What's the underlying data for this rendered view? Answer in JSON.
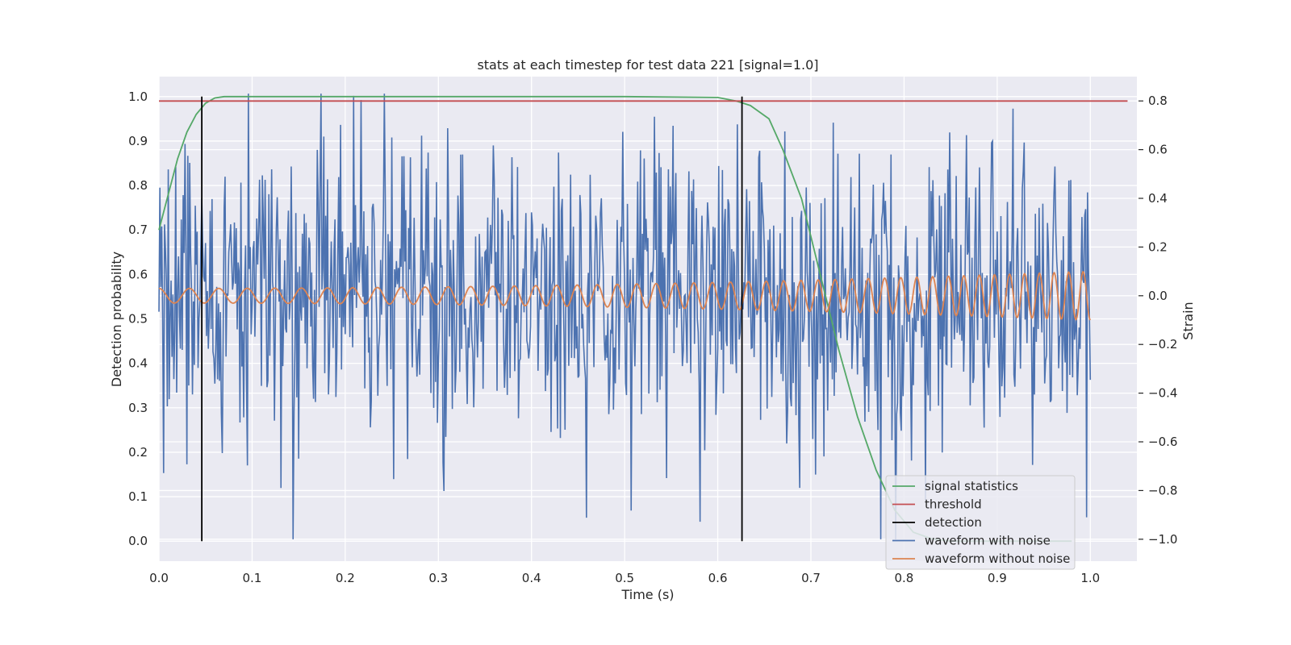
{
  "chart_data": {
    "type": "line",
    "title": "stats at each timestep for test data 221 [signal=1.0]",
    "xlabel": "Time (s)",
    "ylabel": "Detection probability",
    "y2label": "Strain",
    "xlim": [
      0.0,
      1.05
    ],
    "ylim": [
      -0.045,
      1.045
    ],
    "y2lim": [
      -1.09,
      0.9
    ],
    "xticks": [
      "0.0",
      "0.1",
      "0.2",
      "0.3",
      "0.4",
      "0.5",
      "0.6",
      "0.7",
      "0.8",
      "0.9",
      "1.0"
    ],
    "yticks": [
      "0.0",
      "0.1",
      "0.2",
      "0.3",
      "0.4",
      "0.5",
      "0.6",
      "0.7",
      "0.8",
      "0.9",
      "1.0"
    ],
    "y2ticks": [
      "−1.0",
      "−0.8",
      "−0.6",
      "−0.4",
      "−0.2",
      "0.0",
      "0.2",
      "0.4",
      "0.6",
      "0.8"
    ],
    "grid": true,
    "legend_position": "lower-right",
    "colors": {
      "background": "#eaeaf2",
      "grid": "#ffffff",
      "signal": "#55a868",
      "threshold": "#c44e52",
      "detection": "#000000",
      "noisy": "#4c72b0",
      "clean": "#dd8452"
    },
    "series": [
      {
        "name": "signal statistics",
        "axis": "left",
        "x": [
          0.0,
          0.01,
          0.02,
          0.03,
          0.04,
          0.05,
          0.06,
          0.07,
          0.1,
          0.3,
          0.5,
          0.6,
          0.62,
          0.635,
          0.645,
          0.655,
          0.67,
          0.69,
          0.71,
          0.73,
          0.75,
          0.77,
          0.79,
          0.81,
          0.83,
          0.85,
          0.9,
          0.95,
          0.98
        ],
        "y": [
          0.7,
          0.78,
          0.86,
          0.92,
          0.96,
          0.985,
          0.997,
          1.0,
          1.0,
          1.0,
          1.0,
          0.998,
          0.99,
          0.98,
          0.965,
          0.95,
          0.88,
          0.77,
          0.6,
          0.43,
          0.28,
          0.16,
          0.07,
          0.02,
          0.005,
          0.0,
          0.0,
          0.0,
          0.0
        ]
      },
      {
        "name": "threshold",
        "axis": "left",
        "x": [
          0.0,
          1.04
        ],
        "y": [
          0.99,
          0.99
        ]
      },
      {
        "name": "detection",
        "axis": "left",
        "segments": [
          {
            "x": 0.046,
            "y0": 0.0,
            "y1": 1.0
          },
          {
            "x": 0.626,
            "y0": 0.0,
            "y1": 1.0
          }
        ]
      },
      {
        "name": "waveform with noise",
        "axis": "right",
        "x_start": 0.0,
        "x_end": 1.0,
        "noise_std": 0.32
      },
      {
        "name": "waveform without noise",
        "axis": "right",
        "x_start": 0.0,
        "x_end": 1.0,
        "f_start": 30,
        "f_end": 65,
        "amp_start": 0.03,
        "amp_end": 0.1
      }
    ],
    "legend": [
      "signal statistics",
      "threshold",
      "detection",
      "waveform with noise",
      "waveform without noise"
    ]
  }
}
